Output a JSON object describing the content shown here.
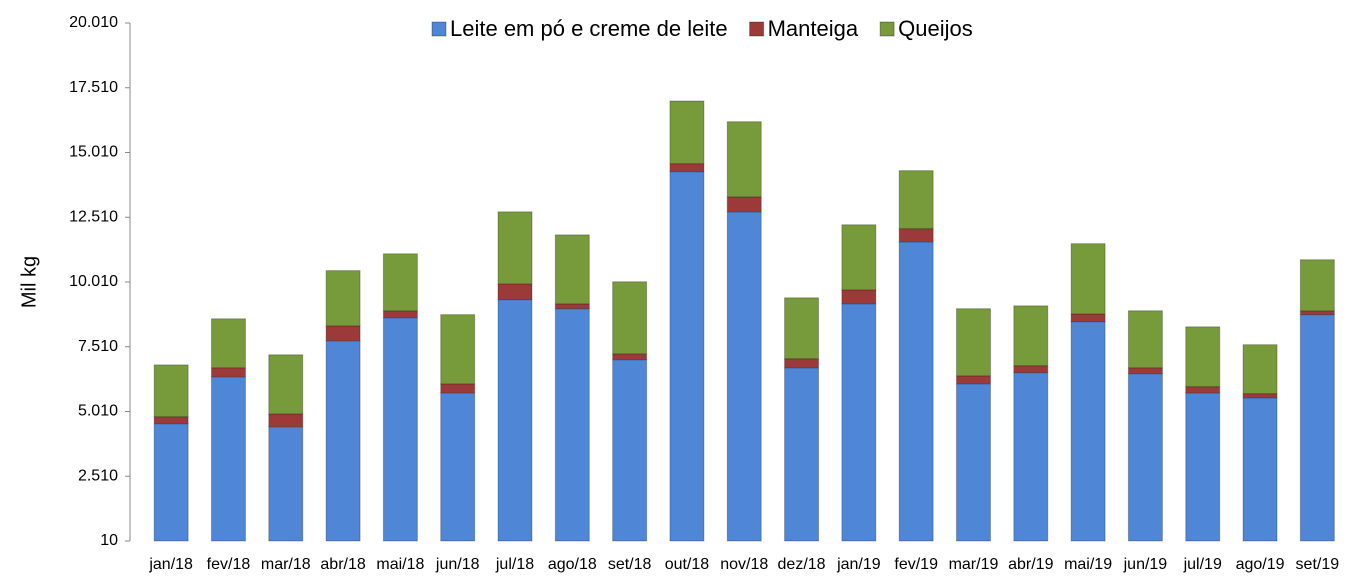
{
  "chart_data": {
    "type": "stacked_bar",
    "y_label": "Mil kg",
    "categories": [
      "jan/18",
      "fev/18",
      "mar/18",
      "abr/18",
      "mai/18",
      "jun/18",
      "jul/18",
      "ago/18",
      "set/18",
      "out/18",
      "nov/18",
      "dez/18",
      "jan/19",
      "fev/19",
      "mar/19",
      "abr/19",
      "mai/19",
      "jun/19",
      "jul/19",
      "ago/19",
      "set/19"
    ],
    "series": [
      {
        "name": "Leite em pó e creme de leite",
        "color": "#4f86d6",
        "values": [
          4530,
          6340,
          4410,
          7730,
          8620,
          5720,
          9320,
          8970,
          7000,
          14260,
          12710,
          6690,
          9160,
          11550,
          6070,
          6500,
          8470,
          6460,
          5720,
          5530,
          8740
        ]
      },
      {
        "name": "Manteiga",
        "color": "#9b3a38",
        "values": [
          270,
          350,
          500,
          580,
          270,
          350,
          610,
          190,
          230,
          310,
          580,
          350,
          540,
          510,
          310,
          270,
          300,
          230,
          240,
          160,
          150
        ]
      },
      {
        "name": "Queijos",
        "color": "#779a3a",
        "values": [
          2000,
          1890,
          2280,
          2130,
          2200,
          2670,
          2780,
          2660,
          2780,
          2420,
          2900,
          2350,
          2510,
          2240,
          2590,
          2310,
          2710,
          2200,
          2310,
          1890,
          1970
        ]
      }
    ],
    "ylim": [
      10,
      20010
    ],
    "yticks": [
      10,
      {
        "value": 2510,
        "label": "2.510"
      },
      {
        "value": 5010,
        "label": "5.010"
      },
      {
        "value": 7510,
        "label": "7.510"
      },
      {
        "value": 10010,
        "label": "10.010"
      },
      {
        "value": 12510,
        "label": "12.510"
      },
      {
        "value": 15010,
        "label": "15.010"
      },
      {
        "value": 17510,
        "label": "17.510"
      },
      {
        "value": 20010,
        "label": "20.010"
      }
    ],
    "grid": false,
    "legend": "top"
  }
}
